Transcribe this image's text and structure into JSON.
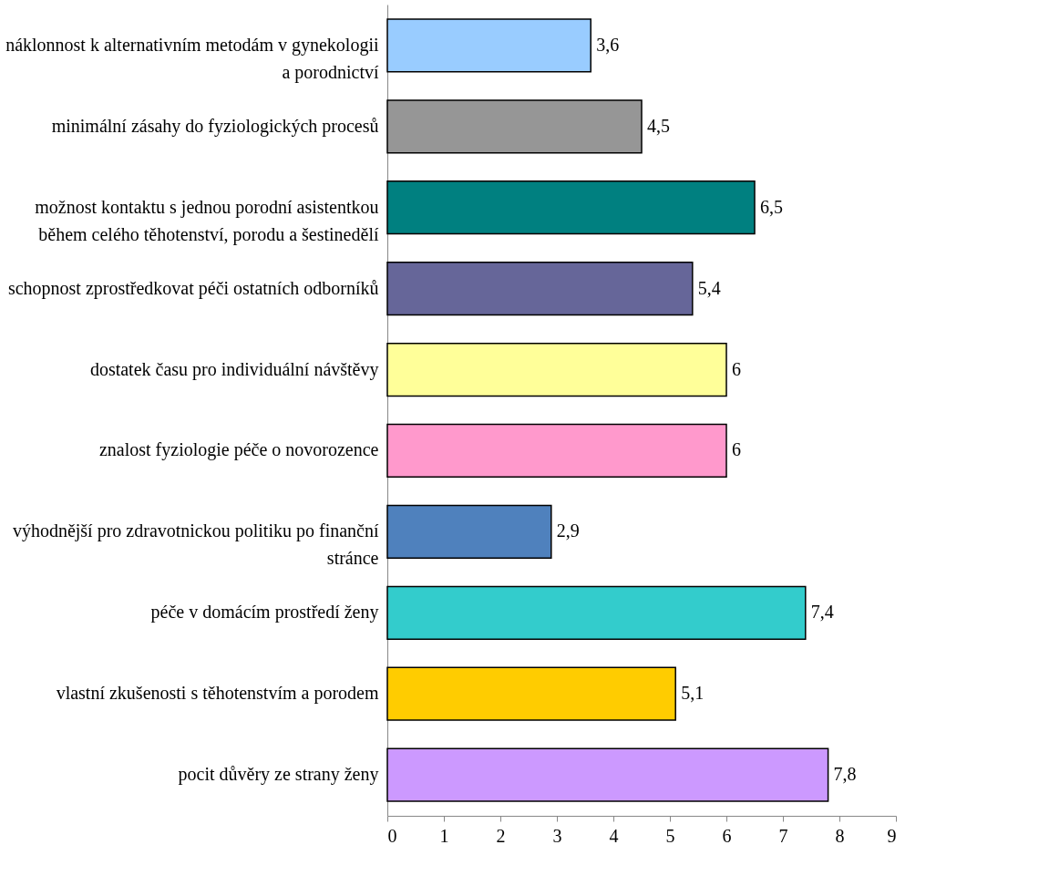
{
  "chart_data": {
    "type": "bar",
    "orientation": "horizontal",
    "categories": [
      "náklonnost k alternativním metodám v gynekologii a porodnictví",
      "minimální zásahy do fyziologických procesů",
      "možnost kontaktu s jednou porodní asistentkou během celého těhotenství, porodu a šestinedělí",
      "schopnost zprostředkovat péči ostatních odborníků",
      "dostatek času pro individuální návštěvy",
      "znalost fyziologie péče o novorozence",
      "výhodnější pro zdravotnickou politiku po finanční stránce",
      "péče v domácím prostředí ženy",
      "vlastní zkušenosti s těhotenstvím a porodem",
      "pocit důvěry ze strany ženy"
    ],
    "values": [
      3.6,
      4.5,
      6.5,
      5.4,
      6,
      6,
      2.9,
      7.4,
      5.1,
      7.8
    ],
    "colors": [
      "#99ccff",
      "#969696",
      "#008080",
      "#666699",
      "#ffff99",
      "#ff99cc",
      "#4f81bd",
      "#33cccc",
      "#ffcc00",
      "#cc99ff"
    ],
    "xlim": [
      0,
      9
    ],
    "xticks": [
      0,
      1,
      2,
      3,
      4,
      5,
      6,
      7,
      8,
      9
    ],
    "value_labels": [
      "3,6",
      "4,5",
      "6,5",
      "5,4",
      "6",
      "6",
      "2,9",
      "7,4",
      "5,1",
      "7,8"
    ],
    "grid": false
  }
}
